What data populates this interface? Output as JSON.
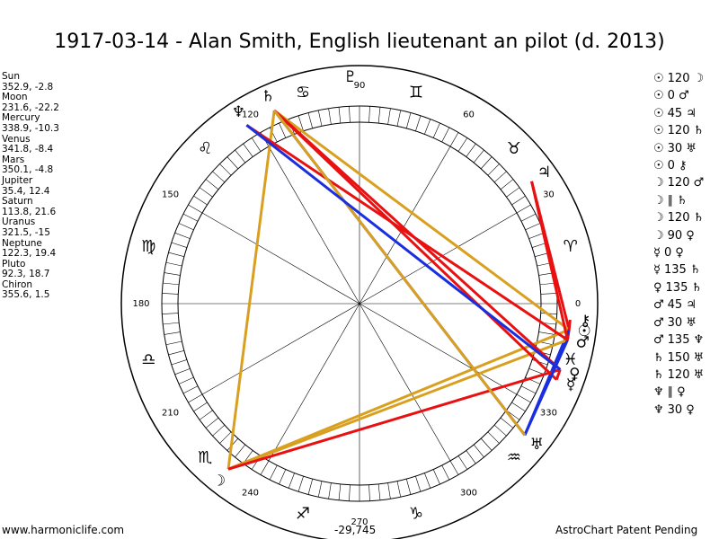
{
  "title": "1917-03-14 - Alan Smith, English lieutenant an pilot (d. 2013)",
  "planets": [
    {
      "name": "Sun",
      "glyph": "☉",
      "lon": 352.9,
      "lat": -2.8
    },
    {
      "name": "Moon",
      "glyph": "☽",
      "lon": 231.6,
      "lat": -22.2
    },
    {
      "name": "Mercury",
      "glyph": "☿",
      "lon": 338.9,
      "lat": -10.3
    },
    {
      "name": "Venus",
      "glyph": "♀",
      "lon": 341.8,
      "lat": -8.4
    },
    {
      "name": "Mars",
      "glyph": "♂",
      "lon": 350.1,
      "lat": -4.8
    },
    {
      "name": "Jupiter",
      "glyph": "♃",
      "lon": 35.4,
      "lat": 12.4
    },
    {
      "name": "Saturn",
      "glyph": "♄",
      "lon": 113.8,
      "lat": 21.6
    },
    {
      "name": "Uranus",
      "glyph": "♅",
      "lon": 321.5,
      "lat": -15.0
    },
    {
      "name": "Neptune",
      "glyph": "♆",
      "lon": 122.3,
      "lat": 19.4
    },
    {
      "name": "Pluto",
      "glyph": "♇",
      "lon": 92.3,
      "lat": 18.7
    },
    {
      "name": "Chiron",
      "glyph": "⚷",
      "lon": 355.6,
      "lat": 1.5
    }
  ],
  "aspects": [
    {
      "from": "☉",
      "aspect": 120,
      "to": "☽"
    },
    {
      "from": "☉",
      "aspect": 0,
      "to": "♂"
    },
    {
      "from": "☉",
      "aspect": 45,
      "to": "♃"
    },
    {
      "from": "☉",
      "aspect": 120,
      "to": "♄"
    },
    {
      "from": "☉",
      "aspect": 30,
      "to": "♅"
    },
    {
      "from": "☉",
      "aspect": 0,
      "to": "⚷"
    },
    {
      "from": "☽",
      "aspect": 120,
      "to": "♂"
    },
    {
      "from": "☽",
      "aspect": "∥",
      "to": "♄"
    },
    {
      "from": "☽",
      "aspect": 120,
      "to": "♄"
    },
    {
      "from": "☽",
      "aspect": 90,
      "to": "♀"
    },
    {
      "from": "☿",
      "aspect": 0,
      "to": "♀"
    },
    {
      "from": "☿",
      "aspect": 135,
      "to": "♄"
    },
    {
      "from": "♀",
      "aspect": 135,
      "to": "♄"
    },
    {
      "from": "♂",
      "aspect": 45,
      "to": "♃"
    },
    {
      "from": "♂",
      "aspect": 30,
      "to": "♅"
    },
    {
      "from": "♂",
      "aspect": 135,
      "to": "♆"
    },
    {
      "from": "♄",
      "aspect": 150,
      "to": "♅"
    },
    {
      "from": "♄",
      "aspect": 120,
      "to": "♅"
    },
    {
      "from": "♆",
      "aspect": "∥",
      "to": "♀"
    },
    {
      "from": "♆",
      "aspect": 30,
      "to": "♀"
    }
  ],
  "degree_labels": [
    0,
    30,
    60,
    90,
    120,
    150,
    180,
    210,
    240,
    270,
    300,
    330
  ],
  "signs": [
    "♈︎",
    "♉︎",
    "♊︎",
    "♋︎",
    "♌︎",
    "♍︎",
    "♎︎",
    "♏︎",
    "♐︎",
    "♑︎",
    "♒︎",
    "♓︎"
  ],
  "footer": {
    "site": "www.harmoniclife.com",
    "value": "-29,745",
    "notice": "AstroChart Patent Pending"
  }
}
